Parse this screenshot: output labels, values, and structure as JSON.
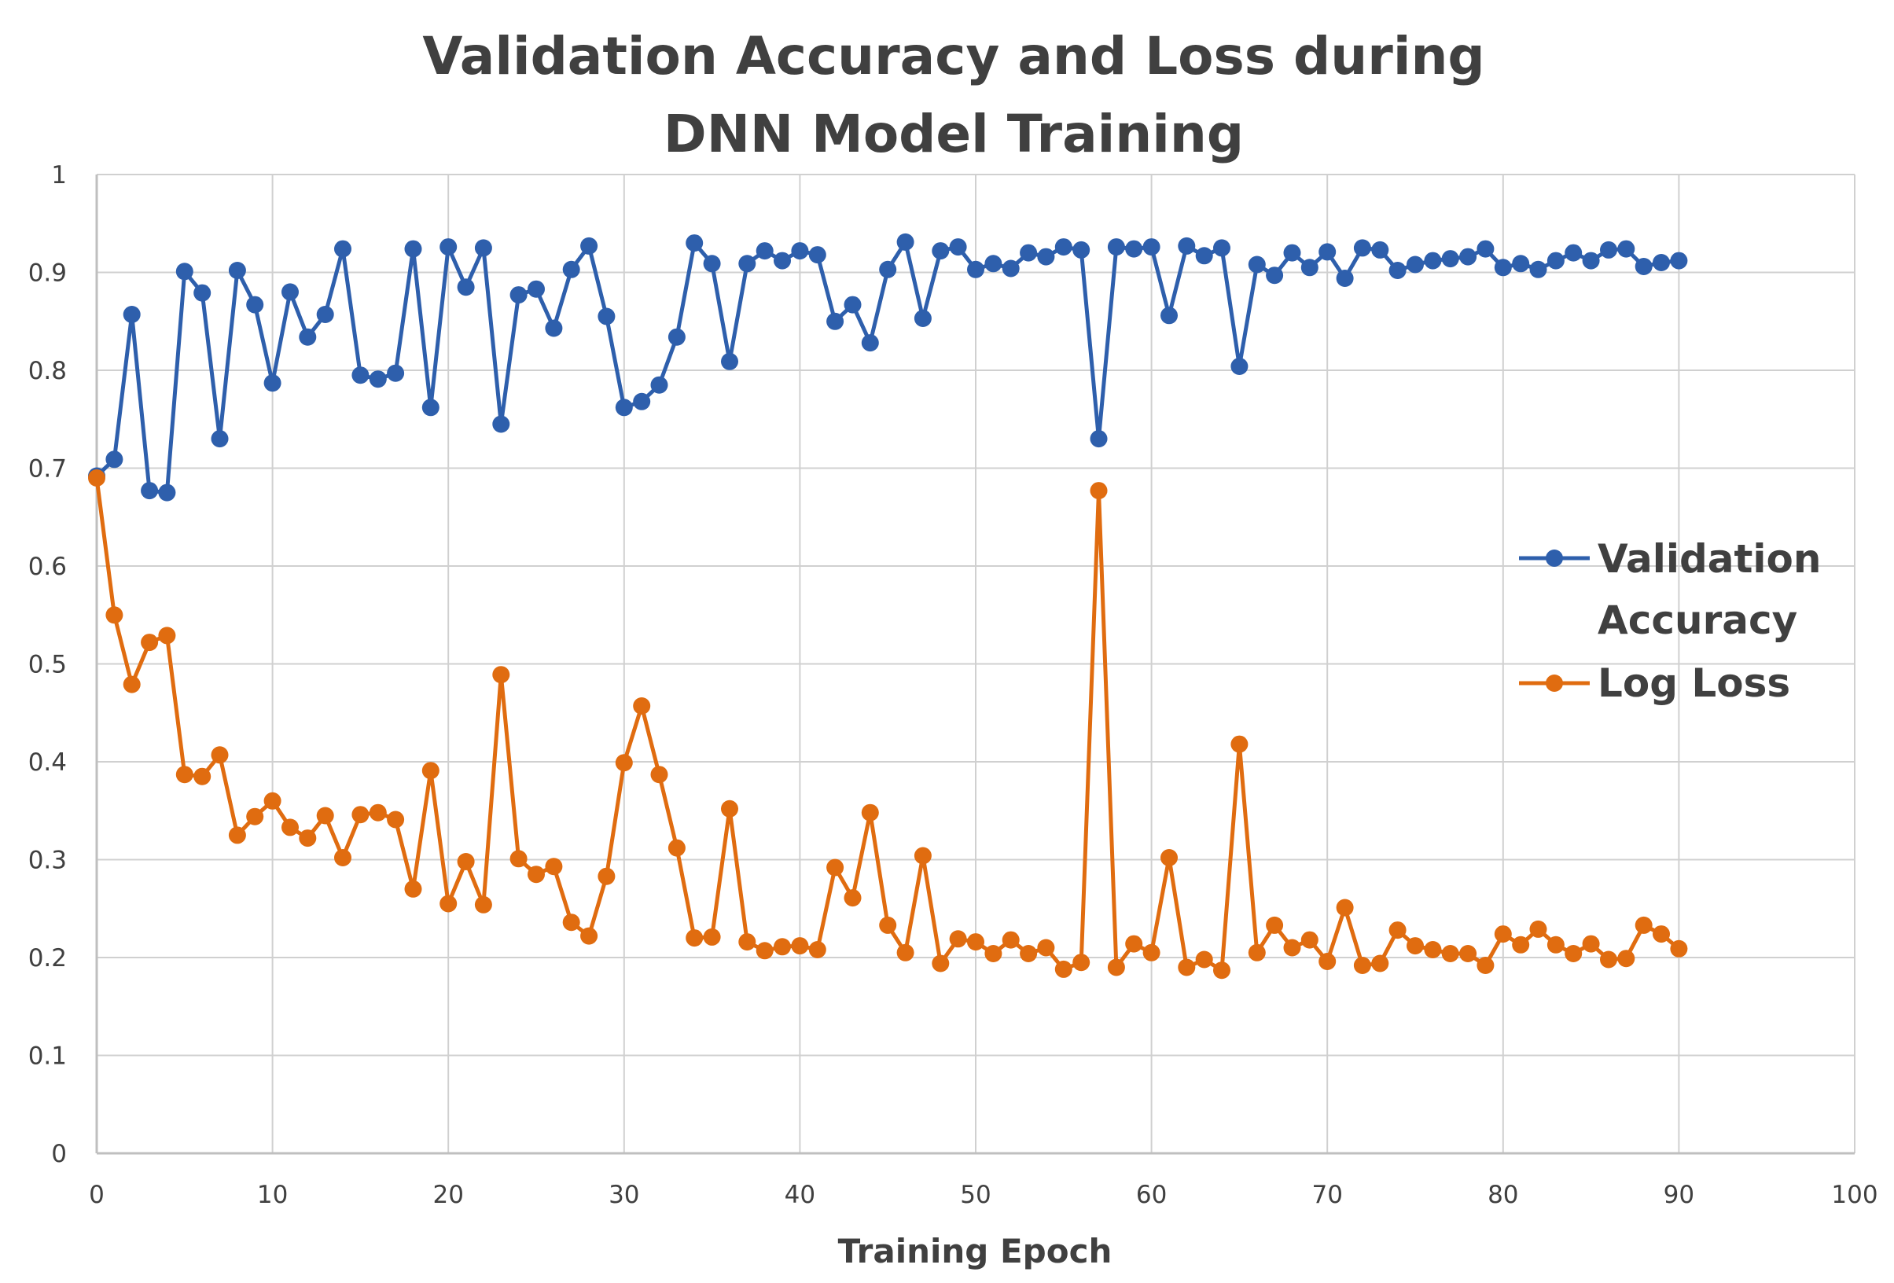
{
  "chart_data": {
    "type": "line",
    "title_lines": [
      "Validation Accuracy and Loss during",
      "DNN Model Training"
    ],
    "xlabel": "Training Epoch",
    "ylabel": "",
    "xlim": [
      0,
      100
    ],
    "ylim": [
      0,
      1
    ],
    "x_ticks": [
      0,
      10,
      20,
      30,
      40,
      50,
      60,
      70,
      80,
      90,
      100
    ],
    "y_ticks": [
      0,
      0.1,
      0.2,
      0.3,
      0.4,
      0.5,
      0.6,
      0.7,
      0.8,
      0.9,
      1
    ],
    "grid": true,
    "legend_position": "right",
    "series": [
      {
        "name": "Validation Accuracy",
        "legend_lines": [
          "Validation",
          "Accuracy"
        ],
        "color": "#2e5fac",
        "x": [
          0,
          1,
          2,
          3,
          4,
          5,
          6,
          7,
          8,
          9,
          10,
          11,
          12,
          13,
          14,
          15,
          16,
          17,
          18,
          19,
          20,
          21,
          22,
          23,
          24,
          25,
          26,
          27,
          28,
          29,
          30,
          31,
          32,
          33,
          34,
          35,
          36,
          37,
          38,
          39,
          40,
          41,
          42,
          43,
          44,
          45,
          46,
          47,
          48,
          49,
          50,
          51,
          52,
          53,
          54,
          55,
          56,
          57,
          58,
          59,
          60,
          61,
          62,
          63,
          64,
          65,
          66,
          67,
          68,
          69,
          70,
          71,
          72,
          73,
          74,
          75,
          76,
          77,
          78,
          79,
          80,
          81,
          82,
          83,
          84,
          85,
          86,
          87,
          88,
          89,
          90
        ],
        "values": [
          0.692,
          0.709,
          0.857,
          0.677,
          0.675,
          0.901,
          0.879,
          0.73,
          0.902,
          0.867,
          0.787,
          0.88,
          0.834,
          0.857,
          0.924,
          0.795,
          0.791,
          0.797,
          0.924,
          0.762,
          0.926,
          0.885,
          0.925,
          0.745,
          0.877,
          0.883,
          0.843,
          0.903,
          0.927,
          0.855,
          0.762,
          0.768,
          0.785,
          0.834,
          0.93,
          0.909,
          0.809,
          0.909,
          0.922,
          0.912,
          0.922,
          0.918,
          0.85,
          0.867,
          0.828,
          0.903,
          0.931,
          0.853,
          0.922,
          0.926,
          0.903,
          0.909,
          0.904,
          0.92,
          0.916,
          0.926,
          0.923,
          0.73,
          0.926,
          0.924,
          0.926,
          0.856,
          0.927,
          0.917,
          0.925,
          0.804,
          0.908,
          0.897,
          0.92,
          0.905,
          0.921,
          0.894,
          0.925,
          0.923,
          0.902,
          0.908,
          0.912,
          0.914,
          0.916,
          0.924,
          0.905,
          0.909,
          0.903,
          0.912,
          0.92,
          0.912,
          0.923,
          0.924,
          0.906,
          0.91,
          0.912
        ]
      },
      {
        "name": "Log Loss",
        "legend_lines": [
          "Log Loss"
        ],
        "color": "#e06c10",
        "x": [
          0,
          1,
          2,
          3,
          4,
          5,
          6,
          7,
          8,
          9,
          10,
          11,
          12,
          13,
          14,
          15,
          16,
          17,
          18,
          19,
          20,
          21,
          22,
          23,
          24,
          25,
          26,
          27,
          28,
          29,
          30,
          31,
          32,
          33,
          34,
          35,
          36,
          37,
          38,
          39,
          40,
          41,
          42,
          43,
          44,
          45,
          46,
          47,
          48,
          49,
          50,
          51,
          52,
          53,
          54,
          55,
          56,
          57,
          58,
          59,
          60,
          61,
          62,
          63,
          64,
          65,
          66,
          67,
          68,
          69,
          70,
          71,
          72,
          73,
          74,
          75,
          76,
          77,
          78,
          79,
          80,
          81,
          82,
          83,
          84,
          85,
          86,
          87,
          88,
          89,
          90
        ],
        "values": [
          0.69,
          0.55,
          0.479,
          0.522,
          0.529,
          0.387,
          0.385,
          0.407,
          0.325,
          0.344,
          0.36,
          0.333,
          0.322,
          0.345,
          0.302,
          0.346,
          0.348,
          0.341,
          0.27,
          0.391,
          0.255,
          0.298,
          0.254,
          0.489,
          0.301,
          0.285,
          0.293,
          0.236,
          0.222,
          0.283,
          0.399,
          0.457,
          0.387,
          0.312,
          0.22,
          0.221,
          0.352,
          0.216,
          0.207,
          0.211,
          0.212,
          0.208,
          0.292,
          0.261,
          0.348,
          0.233,
          0.205,
          0.304,
          0.194,
          0.219,
          0.216,
          0.204,
          0.218,
          0.204,
          0.21,
          0.188,
          0.195,
          0.677,
          0.19,
          0.214,
          0.205,
          0.302,
          0.19,
          0.198,
          0.187,
          0.418,
          0.205,
          0.233,
          0.21,
          0.218,
          0.196,
          0.251,
          0.192,
          0.194,
          0.228,
          0.212,
          0.208,
          0.204,
          0.204,
          0.192,
          0.224,
          0.213,
          0.229,
          0.213,
          0.204,
          0.214,
          0.198,
          0.199,
          0.233,
          0.224,
          0.209
        ]
      }
    ]
  }
}
